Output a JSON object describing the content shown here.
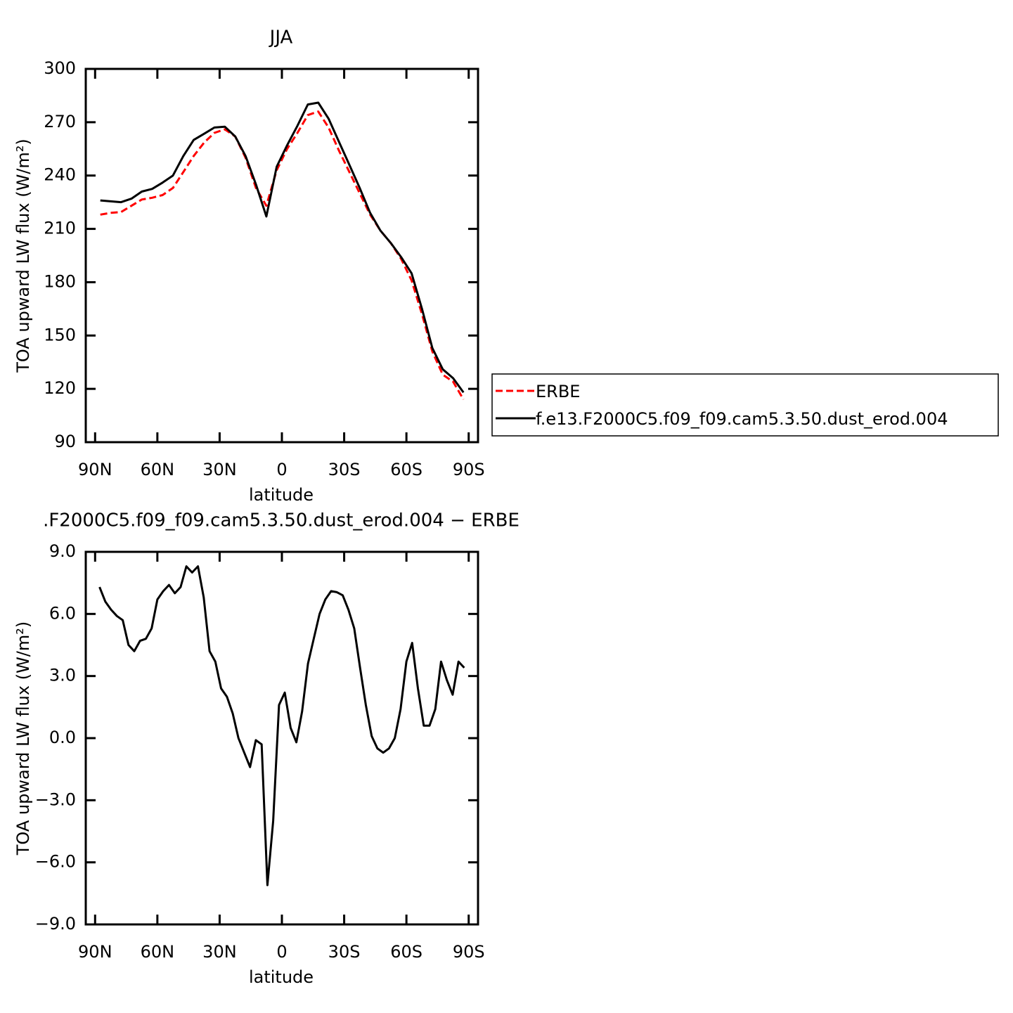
{
  "chart_data": [
    {
      "type": "line",
      "title": "JJA",
      "xlabel": "latitude",
      "ylabel": "TOA upward LW flux (W/m²)",
      "x": [
        87.5,
        82.5,
        77.5,
        72.5,
        67.5,
        62.5,
        57.5,
        52.5,
        47.5,
        42.5,
        37.5,
        32.5,
        27.5,
        22.5,
        17.5,
        12.5,
        7.5,
        2.5,
        -2.5,
        -7.5,
        -12.5,
        -17.5,
        -22.5,
        -27.5,
        -32.5,
        -37.5,
        -42.5,
        -47.5,
        -52.5,
        -57.5,
        -62.5,
        -67.5,
        -72.5,
        -77.5,
        -82.5,
        -87.5
      ],
      "series": [
        {
          "name": "ERBE",
          "color": "#ff0000",
          "line_style": "dashed",
          "values": [
            218,
            219,
            219.5,
            223,
            226.5,
            227.5,
            229,
            233,
            242,
            251,
            258.5,
            264,
            266,
            262,
            250,
            233,
            223,
            243,
            255,
            264,
            274,
            276,
            267,
            254,
            242,
            230,
            218,
            209,
            202,
            193,
            181,
            162,
            141,
            128,
            124,
            114
          ]
        },
        {
          "name": "f.e13.F2000C5.f09_f09.cam5.3.50.dust_erod.004",
          "color": "#000000",
          "line_style": "solid",
          "values": [
            226,
            225.5,
            225,
            227,
            231,
            232.5,
            236,
            240,
            251,
            260,
            263.5,
            267,
            267.5,
            262,
            251,
            235,
            217,
            245,
            257,
            268,
            280,
            281,
            272,
            259,
            246,
            233,
            219,
            209,
            202,
            194,
            185,
            165,
            143,
            131,
            126,
            118
          ]
        }
      ],
      "xlim": [
        94.5,
        -94.5
      ],
      "xticks": [
        {
          "value": 90,
          "label": "90N"
        },
        {
          "value": 60,
          "label": "60N"
        },
        {
          "value": 30,
          "label": "30N"
        },
        0,
        {
          "value": -30,
          "label": "30S"
        },
        {
          "value": -60,
          "label": "60S"
        },
        {
          "value": -90,
          "label": "90S"
        }
      ],
      "ylim": [
        90,
        300
      ],
      "yticks": [
        90,
        120,
        150,
        180,
        210,
        240,
        270,
        300
      ],
      "legend": "right"
    },
    {
      "type": "line",
      "title": ".F2000C5.f09_f09.cam5.3.50.dust_erod.004 − ERBE",
      "xlabel": "latitude",
      "ylabel": "TOA upward LW flux (W/m²)",
      "x": [
        87.86,
        85.07,
        82.28,
        79.49,
        76.7,
        73.92,
        71.13,
        68.34,
        65.55,
        62.76,
        59.97,
        57.18,
        54.39,
        51.6,
        48.81,
        46.03,
        43.24,
        40.45,
        37.66,
        34.87,
        32.08,
        29.29,
        26.5,
        23.71,
        20.92,
        18.14,
        15.35,
        12.56,
        9.77,
        6.98,
        4.19,
        1.4,
        -1.4,
        -4.19,
        -6.98,
        -9.77,
        -12.56,
        -15.35,
        -18.14,
        -20.92,
        -23.71,
        -26.5,
        -29.29,
        -32.08,
        -34.87,
        -37.66,
        -40.45,
        -43.24,
        -46.03,
        -48.81,
        -51.6,
        -54.39,
        -57.18,
        -59.97,
        -62.76,
        -65.55,
        -68.34,
        -71.13,
        -73.92,
        -76.7,
        -79.49,
        -82.28,
        -85.07,
        -87.86
      ],
      "series": [
        {
          "color": "#000000",
          "line_style": "solid",
          "values": [
            7.3,
            6.6,
            6.2,
            5.9,
            5.7,
            4.5,
            4.2,
            4.7,
            4.8,
            5.3,
            6.7,
            7.1,
            7.4,
            7.0,
            7.3,
            8.3,
            8.0,
            8.3,
            6.8,
            4.2,
            3.7,
            2.4,
            2.0,
            1.2,
            0,
            -0.7,
            -1.4,
            -0.1,
            -0.3,
            -7.1,
            -4.0,
            1.6,
            2.2,
            0.5,
            -0.2,
            1.3,
            3.6,
            4.8,
            6.0,
            6.7,
            7.1,
            7.05,
            6.9,
            6.2,
            5.3,
            3.4,
            1.6,
            0.1,
            -0.5,
            -0.7,
            -0.5,
            0,
            1.4,
            3.7,
            4.6,
            2.4,
            0.6,
            0.6,
            1.4,
            3.7,
            2.8,
            2.1,
            3.7,
            3.4
          ]
        }
      ],
      "xlim": [
        94.5,
        -94.5
      ],
      "xticks": [
        {
          "value": 90,
          "label": "90N"
        },
        {
          "value": 60,
          "label": "60N"
        },
        {
          "value": 30,
          "label": "30N"
        },
        0,
        {
          "value": -30,
          "label": "30S"
        },
        {
          "value": -60,
          "label": "60S"
        },
        {
          "value": -90,
          "label": "90S"
        }
      ],
      "ylim": [
        -9,
        9
      ],
      "yticks": [
        {
          "value": -9,
          "label": "−9.0"
        },
        {
          "value": -6,
          "label": "−6.0"
        },
        {
          "value": -3,
          "label": "−3.0"
        },
        {
          "value": 0,
          "label": "0.0"
        },
        {
          "value": 3,
          "label": "3.0"
        },
        {
          "value": 6,
          "label": "6.0"
        },
        {
          "value": 9,
          "label": "9.0"
        }
      ]
    }
  ]
}
